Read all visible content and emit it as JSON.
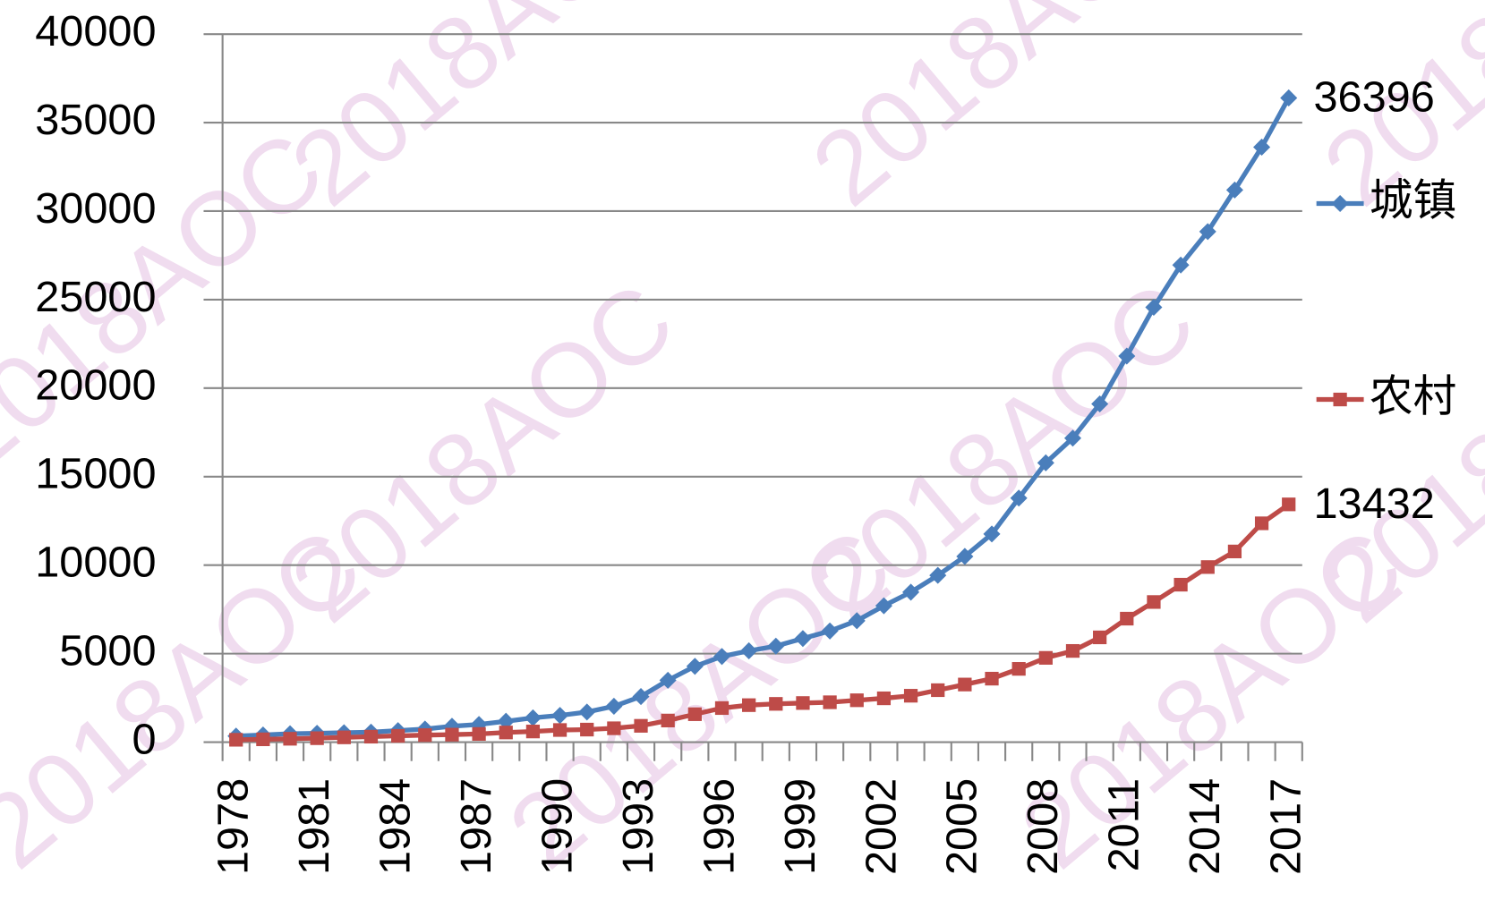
{
  "chart_data": {
    "type": "line",
    "watermark": "2018AOC",
    "categories": [
      "1978",
      null,
      null,
      "1981",
      null,
      null,
      "1984",
      null,
      null,
      "1987",
      null,
      null,
      "1990",
      null,
      null,
      "1993",
      null,
      null,
      "1996",
      null,
      null,
      "1999",
      null,
      null,
      "2002",
      null,
      null,
      "2005",
      null,
      null,
      "2008",
      null,
      null,
      "2011",
      null,
      null,
      "2014",
      null,
      null,
      "2017"
    ],
    "series": [
      {
        "name": "城镇",
        "color": "#4a7ebb",
        "marker": "diamond",
        "values": [
          343,
          405,
          478,
          500,
          535,
          565,
          652,
          739,
          900,
          1002,
          1180,
          1374,
          1510,
          1701,
          2027,
          2577,
          3496,
          4283,
          4839,
          5160,
          5425,
          5854,
          6280,
          6860,
          7703,
          8472,
          9422,
          10493,
          11759,
          13786,
          15781,
          17175,
          19109,
          21810,
          24565,
          26955,
          28844,
          31195,
          33616,
          36396
        ]
      },
      {
        "name": "农村",
        "color": "#be4b48",
        "marker": "square",
        "values": [
          134,
          160,
          191,
          223,
          270,
          310,
          355,
          398,
          424,
          463,
          545,
          602,
          686,
          709,
          784,
          922,
          1221,
          1578,
          1926,
          2090,
          2162,
          2210,
          2253,
          2366,
          2476,
          2622,
          2936,
          3255,
          3587,
          4140,
          4761,
          5153,
          5919,
          6977,
          7917,
          8896,
          9892,
          10772,
          12363,
          13432
        ]
      }
    ],
    "ylim": [
      0,
      40000
    ],
    "yticks": [
      0,
      5000,
      10000,
      15000,
      20000,
      25000,
      30000,
      35000,
      40000
    ],
    "grid": true,
    "legend": "right"
  }
}
